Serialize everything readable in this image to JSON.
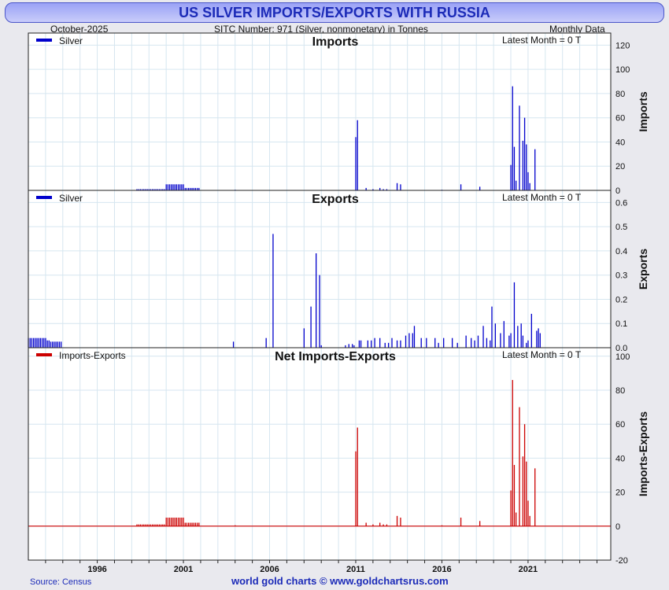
{
  "header": {
    "title": "US SILVER IMPORTS/EXPORTS WITH RUSSIA",
    "date": "October-2025",
    "subtitle": "SITC Number: 971 (Silver, nonmonetary) in Tonnes",
    "frequency": "Monthly Data"
  },
  "footer": {
    "source": "Source: Census",
    "credit": "world gold charts © www.goldchartsrus.com"
  },
  "colors": {
    "imports": "#0000cc",
    "exports": "#0000cc",
    "net": "#cc0000",
    "gridline": "#d6e6f0",
    "title_text": "#1c2bb8",
    "background": "#e9e9ee"
  },
  "chart_data": [
    {
      "type": "bar",
      "title": "Imports",
      "ylabel": "Imports",
      "legend": "Silver",
      "legend_position": "top-left",
      "note": "Latest Month = 0 T",
      "ylim": [
        0,
        130
      ],
      "yticks": [
        0,
        20,
        40,
        60,
        80,
        100,
        120
      ],
      "grid": true,
      "x": [
        1998.3,
        1998.4,
        1998.5,
        1998.6,
        1998.7,
        1998.8,
        1998.9,
        1999.0,
        1999.1,
        1999.2,
        1999.3,
        1999.4,
        1999.5,
        1999.6,
        1999.7,
        1999.8,
        1999.9,
        2000.0,
        2000.1,
        2000.2,
        2000.3,
        2000.4,
        2000.5,
        2000.6,
        2000.7,
        2000.8,
        2000.9,
        2001.0,
        2001.1,
        2001.2,
        2001.3,
        2001.4,
        2001.5,
        2001.6,
        2001.7,
        2001.8,
        2001.9,
        2004.0,
        2011.0,
        2011.1,
        2011.6,
        2012.0,
        2012.4,
        2012.6,
        2012.8,
        2013.4,
        2013.6,
        2016.0,
        2017.1,
        2018.2,
        2020.0,
        2020.1,
        2020.2,
        2020.3,
        2020.5,
        2020.7,
        2020.8,
        2020.9,
        2021.0,
        2021.1,
        2021.4
      ],
      "values": [
        1,
        1,
        1,
        1,
        1,
        1,
        1,
        1,
        1,
        1,
        1,
        1,
        1,
        1,
        1,
        1,
        1,
        5,
        5,
        5,
        5,
        5,
        5,
        5,
        5,
        5,
        5,
        5,
        2,
        2,
        2,
        2,
        2,
        2,
        2,
        2,
        2,
        0.5,
        44,
        58,
        2,
        1,
        2,
        1,
        1,
        6,
        5,
        0.5,
        5,
        3,
        21,
        86,
        36,
        8,
        70,
        41,
        60,
        38,
        15,
        6,
        34
      ],
      "xticks": [
        1996,
        2001,
        2006,
        2011,
        2016,
        2021
      ]
    },
    {
      "type": "bar",
      "title": "Exports",
      "ylabel": "Exports",
      "legend": "Silver",
      "legend_position": "top-left",
      "note": "Latest Month = 0 T",
      "ylim": [
        0,
        0.65
      ],
      "yticks": [
        0.0,
        0.1,
        0.2,
        0.3,
        0.4,
        0.5,
        0.6
      ],
      "grid": true,
      "x": [
        1992.0,
        1992.1,
        1992.2,
        1992.3,
        1992.4,
        1992.5,
        1992.6,
        1992.7,
        1992.8,
        1992.9,
        1993.0,
        1993.1,
        1993.2,
        1993.3,
        1993.4,
        1993.5,
        1993.6,
        1993.7,
        1993.8,
        1993.9,
        2003.9,
        2005.8,
        2006.2,
        2008.0,
        2008.4,
        2008.7,
        2008.9,
        2009.0,
        2010.4,
        2010.6,
        2010.8,
        2010.9,
        2011.2,
        2011.3,
        2011.7,
        2011.9,
        2012.1,
        2012.4,
        2012.7,
        2012.9,
        2013.1,
        2013.4,
        2013.6,
        2013.9,
        2014.1,
        2014.3,
        2014.4,
        2014.8,
        2015.1,
        2015.6,
        2015.8,
        2016.1,
        2016.6,
        2016.9,
        2017.4,
        2017.7,
        2017.9,
        2018.1,
        2018.4,
        2018.6,
        2018.8,
        2018.9,
        2019.1,
        2019.4,
        2019.6,
        2019.9,
        2020.0,
        2020.2,
        2020.4,
        2020.6,
        2020.7,
        2020.9,
        2021.0,
        2021.2,
        2021.5,
        2021.6,
        2021.7
      ],
      "values": [
        0.04,
        0.04,
        0.04,
        0.04,
        0.04,
        0.04,
        0.04,
        0.04,
        0.04,
        0.04,
        0.04,
        0.03,
        0.03,
        0.025,
        0.025,
        0.025,
        0.025,
        0.025,
        0.025,
        0.025,
        0.025,
        0.04,
        0.47,
        0.08,
        0.17,
        0.39,
        0.3,
        0.01,
        0.01,
        0.015,
        0.015,
        0.01,
        0.03,
        0.03,
        0.03,
        0.03,
        0.04,
        0.04,
        0.02,
        0.02,
        0.04,
        0.03,
        0.03,
        0.05,
        0.06,
        0.06,
        0.09,
        0.04,
        0.04,
        0.04,
        0.02,
        0.04,
        0.04,
        0.02,
        0.05,
        0.04,
        0.03,
        0.05,
        0.09,
        0.04,
        0.03,
        0.17,
        0.1,
        0.06,
        0.11,
        0.05,
        0.06,
        0.27,
        0.09,
        0.1,
        0.05,
        0.02,
        0.03,
        0.14,
        0.07,
        0.08,
        0.06
      ],
      "xticks": [
        1996,
        2001,
        2006,
        2011,
        2016,
        2021
      ]
    },
    {
      "type": "bar",
      "title": "Net Imports-Exports",
      "ylabel": "Imports-Exports",
      "legend": "Imports-Exports",
      "legend_position": "top-left",
      "note": "Latest Month = 0 T",
      "ylim": [
        -20,
        105
      ],
      "yticks": [
        -20,
        0,
        20,
        40,
        60,
        80,
        100
      ],
      "grid": true,
      "x": [
        1998.3,
        1998.4,
        1998.5,
        1998.6,
        1998.7,
        1998.8,
        1998.9,
        1999.0,
        1999.1,
        1999.2,
        1999.3,
        1999.4,
        1999.5,
        1999.6,
        1999.7,
        1999.8,
        1999.9,
        2000.0,
        2000.1,
        2000.2,
        2000.3,
        2000.4,
        2000.5,
        2000.6,
        2000.7,
        2000.8,
        2000.9,
        2001.0,
        2001.1,
        2001.2,
        2001.3,
        2001.4,
        2001.5,
        2001.6,
        2001.7,
        2001.8,
        2001.9,
        2004.0,
        2011.0,
        2011.1,
        2011.6,
        2012.0,
        2012.4,
        2012.6,
        2012.8,
        2013.4,
        2013.6,
        2016.0,
        2017.1,
        2018.2,
        2020.0,
        2020.1,
        2020.2,
        2020.3,
        2020.5,
        2020.7,
        2020.8,
        2020.9,
        2021.0,
        2021.1,
        2021.4
      ],
      "values": [
        1,
        1,
        1,
        1,
        1,
        1,
        1,
        1,
        1,
        1,
        1,
        1,
        1,
        1,
        1,
        1,
        1,
        5,
        5,
        5,
        5,
        5,
        5,
        5,
        5,
        5,
        5,
        5,
        2,
        2,
        2,
        2,
        2,
        2,
        2,
        2,
        2,
        0.5,
        44,
        58,
        2,
        1,
        2,
        1,
        1,
        6,
        5,
        0.5,
        5,
        3,
        21,
        86,
        36,
        8,
        70,
        41,
        60,
        38,
        15,
        6,
        34
      ],
      "xticks": [
        1996,
        2001,
        2006,
        2011,
        2016,
        2021
      ]
    }
  ]
}
